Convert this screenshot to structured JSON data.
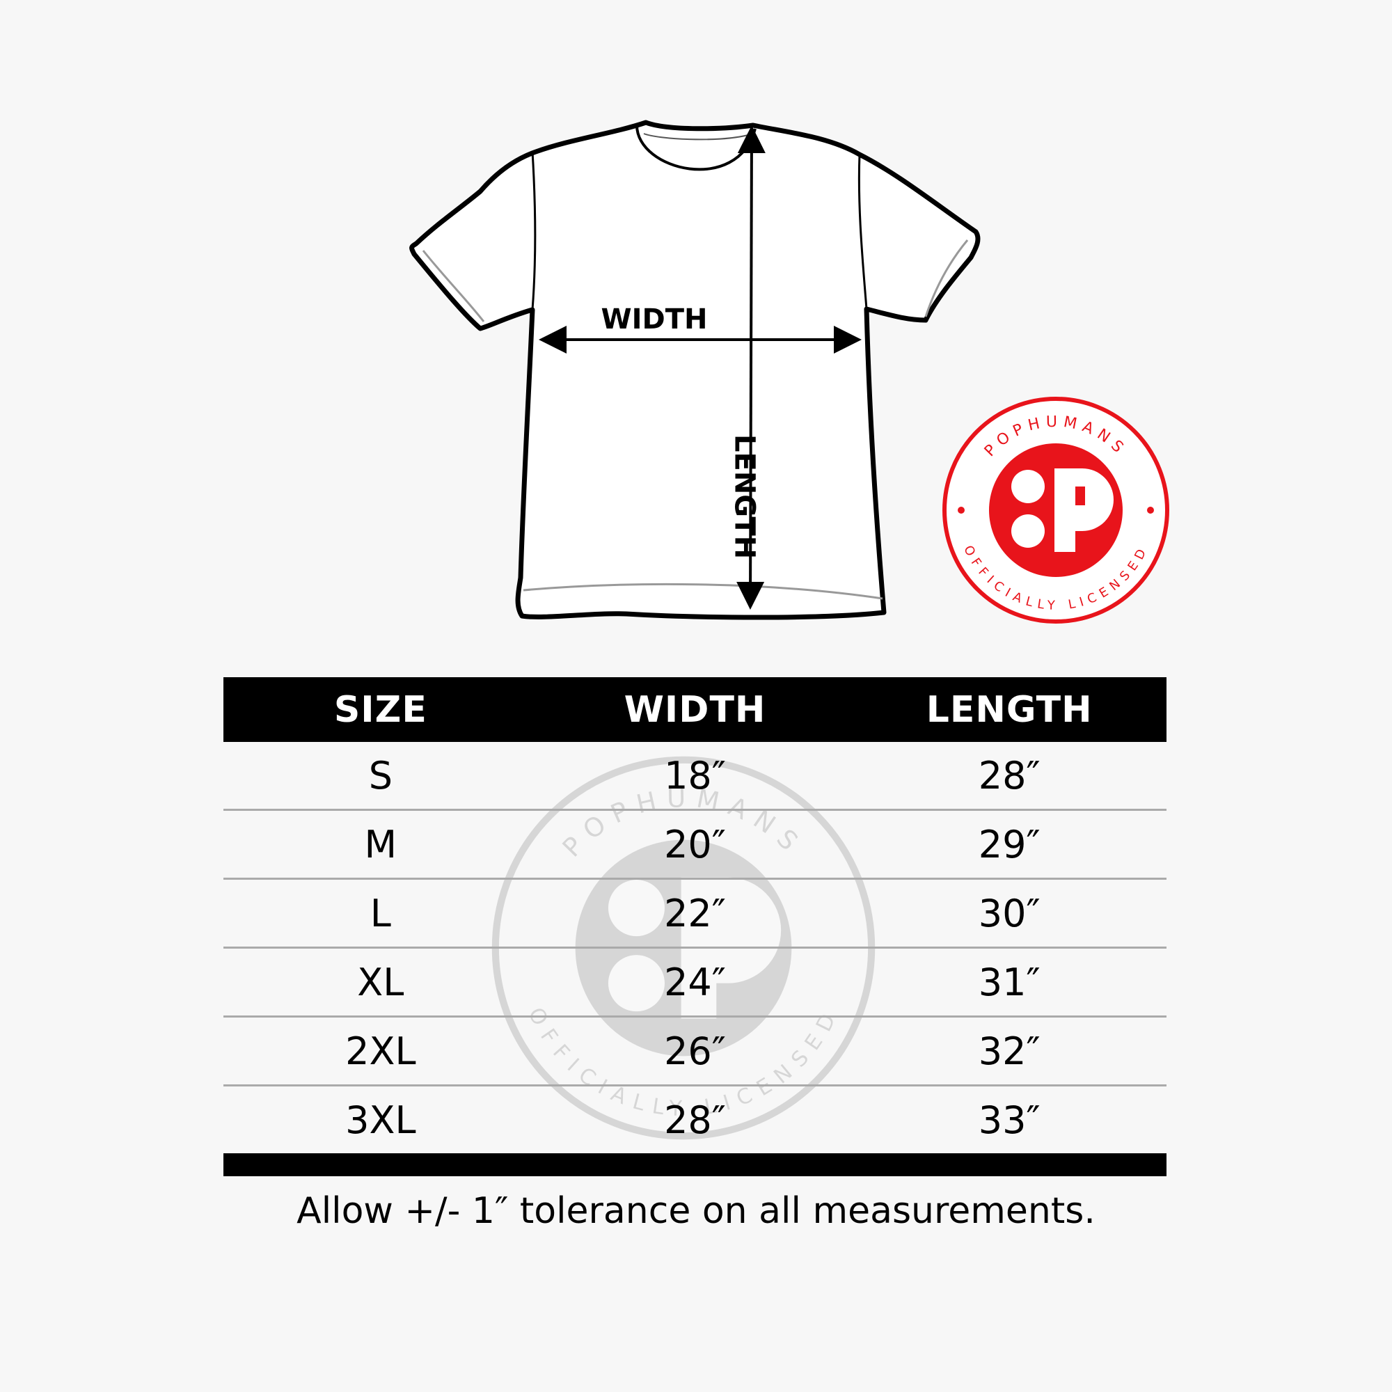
{
  "diagram": {
    "width_label": "WIDTH",
    "length_label": "LENGTH"
  },
  "logo": {
    "brand": "POPHUMANS",
    "tagline": "OFFICIALLY LICENSED",
    "color": "#e8141b"
  },
  "table": {
    "headers": [
      "SIZE",
      "WIDTH",
      "LENGTH"
    ],
    "rows": [
      [
        "S",
        "18″",
        "28″"
      ],
      [
        "M",
        "20″",
        "29″"
      ],
      [
        "L",
        "22″",
        "30″"
      ],
      [
        "XL",
        "24″",
        "31″"
      ],
      [
        "2XL",
        "26″",
        "32″"
      ],
      [
        "3XL",
        "28″",
        "33″"
      ]
    ]
  },
  "note": "Allow +/- 1″ tolerance on all measurements."
}
